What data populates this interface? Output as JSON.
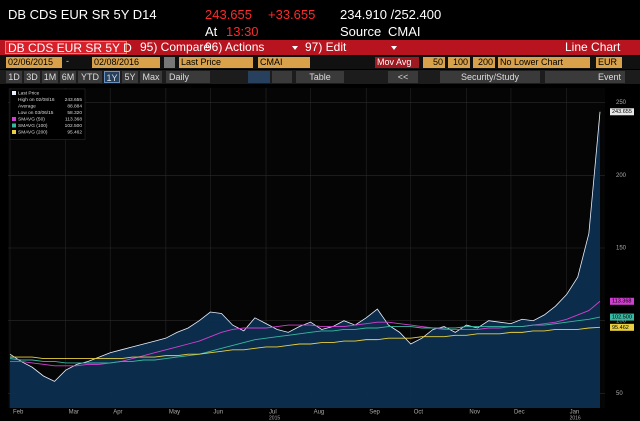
{
  "header": {
    "ticker": "DB CDS EUR SR 5Y D14",
    "last": "243.655",
    "change": "+33.655",
    "range": "234.910 /252.400",
    "time_label": "At",
    "time": "13:30",
    "source_label": "Source",
    "source": "CMAI"
  },
  "menu": {
    "security": "DB CDS EUR SR 5Y D",
    "compare": "95) Compare",
    "actions": "96) Actions",
    "edit": "97) Edit",
    "chart_type": "Line Chart"
  },
  "controls": {
    "start": "02/06/2015",
    "separator": "-",
    "end": "02/08/2016",
    "field": "Last Price",
    "source": "CMAI",
    "mov_avg": "Mov Avg",
    "periods": [
      "50",
      "100",
      "200"
    ],
    "lower": "No Lower Chart",
    "currency": "EUR"
  },
  "toolbar": {
    "ranges": [
      "1D",
      "3D",
      "1M",
      "6M",
      "YTD",
      "1Y",
      "5Y",
      "Max"
    ],
    "active_range": 5,
    "frequency": "Daily",
    "table": "Table",
    "back": "<<",
    "study": "Security/Study",
    "event": "Event"
  },
  "chart_data": {
    "type": "line",
    "area": true,
    "area_color": "#0c2e4e",
    "grid": true,
    "categories": [
      "Feb",
      null,
      null,
      null,
      null,
      "Mar",
      null,
      null,
      null,
      "Apr",
      null,
      null,
      null,
      null,
      "May",
      null,
      null,
      null,
      "Jun",
      null,
      null,
      null,
      null,
      "Jul",
      null,
      null,
      null,
      "Aug",
      null,
      null,
      null,
      null,
      "Sep",
      null,
      null,
      null,
      "Oct",
      null,
      null,
      null,
      null,
      "Nov",
      null,
      null,
      null,
      "Dec",
      null,
      null,
      null,
      null,
      "Jan",
      null,
      null,
      null
    ],
    "year_labels": [
      {
        "label": "2015",
        "category": 23
      },
      {
        "label": "2016",
        "category": 50
      }
    ],
    "ylim": [
      40,
      260
    ],
    "yticks": [
      50,
      100,
      150,
      200,
      250
    ],
    "stats": [
      {
        "label": "High on 02/08/16",
        "value": "243.655"
      },
      {
        "label": "Average",
        "value": "88.884"
      },
      {
        "label": "Low on 03/06/15",
        "value": "58.320"
      }
    ],
    "series": [
      {
        "name": "Last Price",
        "color": "#e8f0ff",
        "last_label": "243.655",
        "values": [
          77,
          72,
          68,
          62,
          58.32,
          66,
          70,
          72,
          75,
          78,
          80,
          82,
          84,
          86,
          88,
          92,
          95,
          100,
          106,
          105,
          97,
          93,
          102,
          98,
          94,
          92,
          96,
          99,
          94,
          96,
          100,
          97,
          102,
          108,
          97,
          92,
          84,
          88,
          94,
          96,
          92,
          97,
          95,
          100,
          99,
          98,
          101,
          100,
          104,
          110,
          118,
          130,
          160,
          243.655
        ]
      },
      {
        "name": "SMAVG (50)",
        "color": "#d040d0",
        "last_label": "113.368",
        "values": [
          72,
          72,
          71,
          70,
          69,
          69,
          69,
          70,
          70,
          71,
          72,
          74,
          76,
          78,
          80,
          82,
          84,
          86,
          89,
          92,
          94,
          95,
          95,
          95,
          96,
          97,
          97,
          97,
          96,
          96,
          96,
          97,
          98,
          99,
          99,
          98,
          97,
          96,
          95,
          94,
          94,
          94,
          94,
          95,
          95,
          96,
          96,
          97,
          98,
          99,
          101,
          104,
          107,
          113.368
        ]
      },
      {
        "name": "SMAVG (100)",
        "color": "#38b8a0",
        "last_label": "102.500",
        "values": [
          74,
          73,
          73,
          72,
          72,
          71,
          71,
          71,
          71,
          71,
          72,
          72,
          73,
          73,
          74,
          75,
          76,
          77,
          79,
          81,
          83,
          85,
          87,
          88,
          89,
          90,
          91,
          92,
          93,
          93,
          94,
          94,
          95,
          95,
          96,
          96,
          96,
          95,
          95,
          95,
          95,
          96,
          96,
          96,
          96,
          96,
          96,
          97,
          97,
          98,
          99,
          100,
          101,
          102.5
        ]
      },
      {
        "name": "SMAVG (200)",
        "color": "#e8d040",
        "last_label": "95.462",
        "values": [
          75,
          75,
          75,
          74,
          74,
          74,
          74,
          74,
          74,
          74,
          74,
          75,
          75,
          75,
          76,
          76,
          77,
          77,
          78,
          79,
          80,
          80,
          81,
          82,
          82,
          83,
          84,
          84,
          85,
          85,
          86,
          86,
          87,
          87,
          88,
          88,
          88,
          89,
          89,
          89,
          90,
          90,
          91,
          91,
          91,
          92,
          92,
          93,
          93,
          94,
          94,
          94,
          95,
          95.462
        ]
      }
    ]
  }
}
